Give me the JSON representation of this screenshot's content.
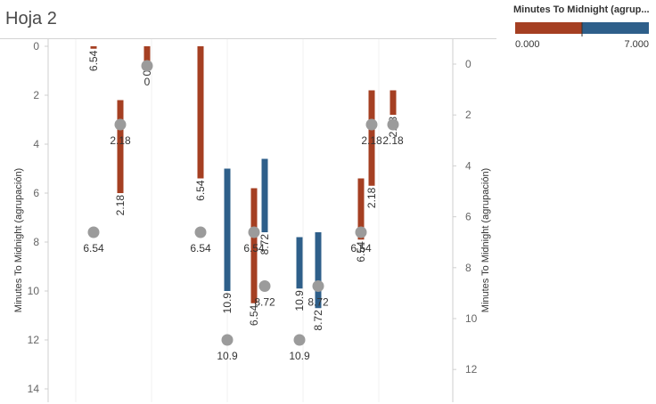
{
  "sheet": {
    "title": "Hoja 2"
  },
  "legend": {
    "title": "Minutes To Midnight (agrup...",
    "min_label": "0.000",
    "max_label": "7.000",
    "colors": [
      "#a53f22",
      "#2e5f8a"
    ],
    "split_fraction": 0.5
  },
  "chart_data": {
    "type": "range-bar-dot",
    "title": "",
    "ylabel_left": "Minutes To Midnight (agrupación)",
    "ylabel_right": "Minutes To Midnight (agrupación)",
    "left_axis": {
      "min": 0,
      "max": 14,
      "ticks": [
        0,
        2,
        4,
        6,
        8,
        10,
        12,
        14
      ],
      "reversed": true
    },
    "right_axis": {
      "min": 0,
      "max": 12,
      "ticks": [
        0,
        2,
        4,
        6,
        8,
        10,
        12
      ],
      "reversed": true
    },
    "colors": {
      "red": "#a53f22",
      "blue": "#2e5f8a",
      "dot": "#9b9b9b"
    },
    "gridline_columns": 5,
    "bars": [
      {
        "slot": 1.0,
        "from": 0.0,
        "to": 0.1,
        "color": "red",
        "label": "6.54"
      },
      {
        "slot": 1.5,
        "from": 2.2,
        "to": 6.0,
        "color": "red",
        "label": "2.18"
      },
      {
        "slot": 2.0,
        "from": 0.0,
        "to": 0.9,
        "color": "red",
        "label": "0"
      },
      {
        "slot": 3.0,
        "from": 0.0,
        "to": 5.4,
        "color": "red",
        "label": "6.54"
      },
      {
        "slot": 3.5,
        "from": 5.0,
        "to": 10.0,
        "color": "blue",
        "label": "10.9"
      },
      {
        "slot": 4.0,
        "from": 5.8,
        "to": 10.5,
        "color": "red",
        "label": "6.54"
      },
      {
        "slot": 4.2,
        "from": 4.6,
        "to": 7.6,
        "color": "blue",
        "label": "8.72"
      },
      {
        "slot": 4.85,
        "from": 7.8,
        "to": 9.9,
        "color": "blue",
        "label": "10.9"
      },
      {
        "slot": 5.2,
        "from": 7.6,
        "to": 10.7,
        "color": "blue",
        "label": "8.72"
      },
      {
        "slot": 6.0,
        "from": 5.4,
        "to": 7.9,
        "color": "red",
        "label": "6.54"
      },
      {
        "slot": 6.2,
        "from": 1.8,
        "to": 5.7,
        "color": "red",
        "label": "2.18"
      },
      {
        "slot": 6.6,
        "from": 1.8,
        "to": 2.8,
        "color": "red",
        "label": "2.18"
      }
    ],
    "dots": [
      {
        "slot": 1.0,
        "value": 7.6,
        "label": "6.54"
      },
      {
        "slot": 1.5,
        "value": 3.2,
        "label": "2.18"
      },
      {
        "slot": 2.0,
        "value": 0.8,
        "label": "0"
      },
      {
        "slot": 3.0,
        "value": 7.6,
        "label": "6.54"
      },
      {
        "slot": 3.5,
        "value": 12.0,
        "label": "10.9"
      },
      {
        "slot": 4.0,
        "value": 7.6,
        "label": "6.54"
      },
      {
        "slot": 4.2,
        "value": 9.8,
        "label": "8.72"
      },
      {
        "slot": 4.85,
        "value": 12.0,
        "label": "10.9"
      },
      {
        "slot": 5.2,
        "value": 9.8,
        "label": "8.72"
      },
      {
        "slot": 6.0,
        "value": 7.6,
        "label": "6.54"
      },
      {
        "slot": 6.2,
        "value": 3.2,
        "label": "2.18"
      },
      {
        "slot": 6.6,
        "value": 3.2,
        "label": "2.18"
      }
    ]
  }
}
